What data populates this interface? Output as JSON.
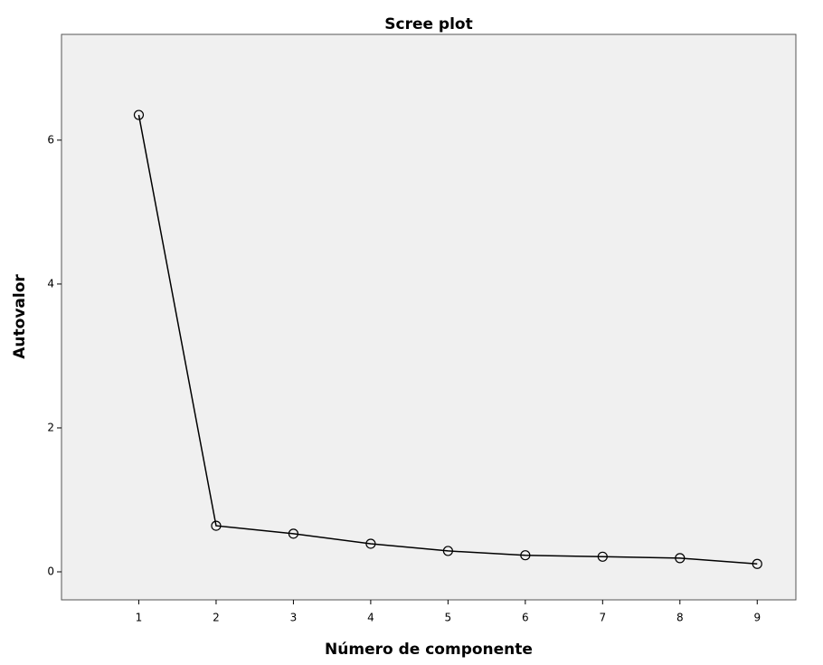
{
  "chart_data": {
    "type": "line",
    "title": "Scree plot",
    "x_label": "Número de componente",
    "y_label": "Autovalor",
    "x": [
      1,
      2,
      3,
      4,
      5,
      6,
      7,
      8,
      9
    ],
    "series": [
      {
        "color": "#000000",
        "values": [
          6.35,
          0.64,
          0.53,
          0.39,
          0.29,
          0.23,
          0.21,
          0.19,
          0.11
        ]
      }
    ],
    "xlim": [
      0,
      9.5
    ],
    "xticks": [
      1,
      2,
      3,
      4,
      5,
      6,
      7,
      8,
      9
    ],
    "ylim": [
      -0.39,
      7.47
    ],
    "yticks": [
      0,
      2,
      4,
      6
    ],
    "background": "#f0f0f0",
    "grid": false
  }
}
